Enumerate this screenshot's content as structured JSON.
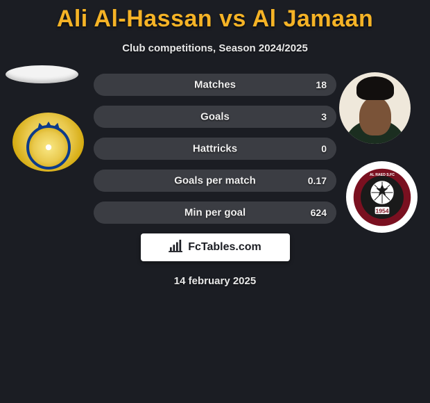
{
  "header": {
    "title": "Ali Al-Hassan vs Al Jamaan",
    "title_color": "#f5b326",
    "subtitle": "Club competitions, Season 2024/2025"
  },
  "colors": {
    "page_bg": "#1b1d23",
    "stat_bg": "#3b3d43",
    "text": "#ffffff"
  },
  "stats": [
    {
      "label": "Matches",
      "value": "18",
      "fill_pct": 100
    },
    {
      "label": "Goals",
      "value": "3",
      "fill_pct": 100
    },
    {
      "label": "Hattricks",
      "value": "0",
      "fill_pct": 100
    },
    {
      "label": "Goals per match",
      "value": "0.17",
      "fill_pct": 100
    },
    {
      "label": "Min per goal",
      "value": "624",
      "fill_pct": 100
    }
  ],
  "avatars": {
    "left_top": {
      "kind": "placeholder-ellipse"
    },
    "left_club": {
      "kind": "al-nassr-crest",
      "primary": "#e9c94e",
      "accent": "#0d3b8a"
    },
    "right_player": {
      "kind": "player-photo-placeholder",
      "bg": "#efe8db",
      "skin": "#7a5338",
      "hair": "#120f0e",
      "shirt": "#1b2e20"
    },
    "right_club": {
      "kind": "al-raed-crest",
      "ring": "#7a1020",
      "inner_bg": "#1a1a1a",
      "ball": "#ffffff",
      "year": "1954"
    }
  },
  "badge": {
    "icon": "bar-chart-icon",
    "text": "FcTables.com"
  },
  "footer": {
    "date": "14 february 2025"
  }
}
